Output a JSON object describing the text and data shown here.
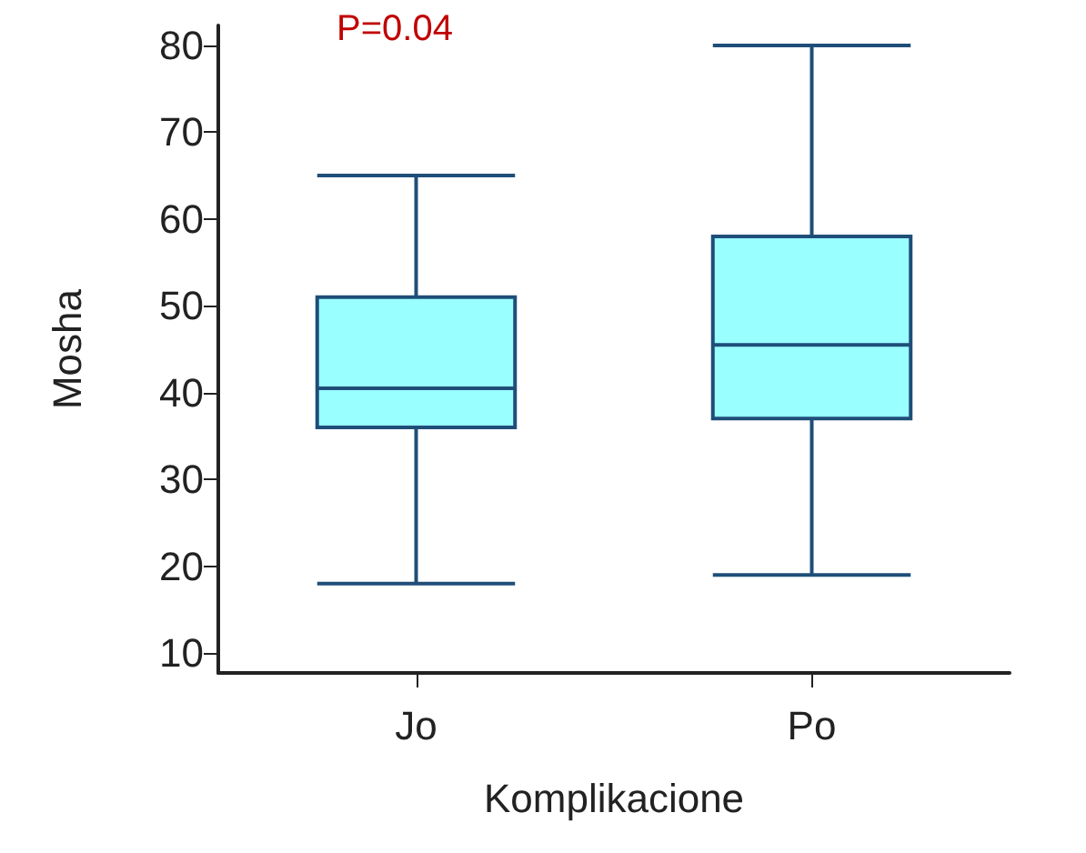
{
  "chart_data": {
    "type": "box",
    "xlabel": "Komplikacione",
    "ylabel": "Mosha",
    "categories": [
      "Jo",
      "Po"
    ],
    "series": [
      {
        "color": "#99ffff",
        "boxes": [
          {
            "low": 18,
            "q1": 36,
            "median": 40.5,
            "q3": 51,
            "high": 65
          },
          {
            "low": 19,
            "q1": 37,
            "median": 45.5,
            "q3": 58,
            "high": 80
          }
        ]
      }
    ],
    "ylim": [
      7.7,
      82.3
    ],
    "yticks": [
      10,
      20,
      30,
      40,
      50,
      60,
      70,
      80
    ],
    "grid": false,
    "annotations": [
      "P=0.04"
    ]
  }
}
